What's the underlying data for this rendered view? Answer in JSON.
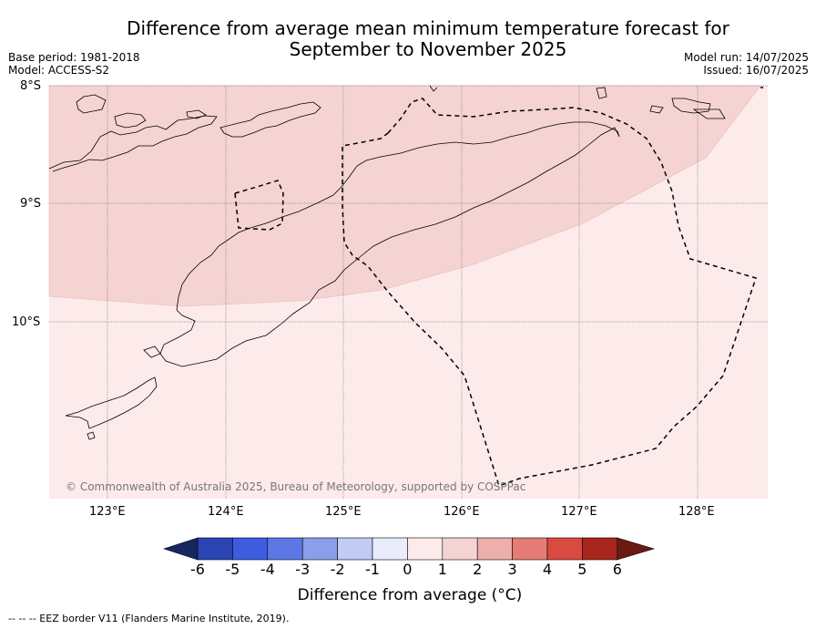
{
  "title_line1": "Difference from average mean minimum temperature forecast for",
  "title_line2": "September to November 2025",
  "meta_left": {
    "base_period": "Base period: 1981-2018",
    "model": "Model: ACCESS-S2"
  },
  "meta_right": {
    "model_run": "Model run: 14/07/2025",
    "issued": "Issued: 16/07/2025"
  },
  "lat_labels": [
    "8°S",
    "9°S",
    "10°S"
  ],
  "lon_labels": [
    "123°E",
    "124°E",
    "125°E",
    "126°E",
    "127°E",
    "128°E"
  ],
  "copyright": "© Commonwealth of Australia 2025, Bureau of Meteorology, supported by COSPPac",
  "colorbar": {
    "labels": [
      "-6",
      "-5",
      "-4",
      "-3",
      "-2",
      "-1",
      "0",
      "1",
      "2",
      "3",
      "4",
      "5",
      "6"
    ],
    "colors": [
      "#182660",
      "#2a44b4",
      "#3d5ce0",
      "#5d78e4",
      "#8a9eec",
      "#c2cbf4",
      "#e9ecfb",
      "#fcebea",
      "#f5d3d3",
      "#eeaeaa",
      "#e57d76",
      "#d94a40",
      "#a8261d",
      "#6a1a14"
    ],
    "title": "Difference from average (°C)"
  },
  "map_fill_colors": {
    "anomaly_0_1": "#fcebea",
    "anomaly_1_2": "#f5d3d3"
  },
  "footer": "--  --  -- EEZ border V11 (Flanders Marine Institute, 2019)."
}
